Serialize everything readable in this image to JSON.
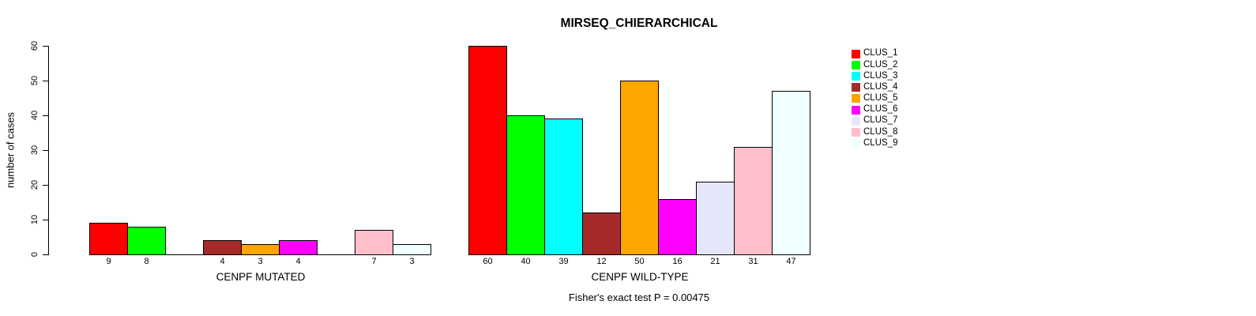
{
  "chart_data": {
    "type": "bar",
    "title": "MIRSEQ_CHIERARCHICAL",
    "ylabel": "number of cases",
    "ylim": [
      0,
      60
    ],
    "yticks": [
      0,
      10,
      20,
      30,
      40,
      50,
      60
    ],
    "caption": "Fisher's exact test P = 0.00475",
    "legend_position": "top-right-outside",
    "grid": false,
    "bar_outline_color": "#000000",
    "clusters": [
      {
        "name": "CLUS_1",
        "color": "#FF0000"
      },
      {
        "name": "CLUS_2",
        "color": "#00FF00"
      },
      {
        "name": "CLUS_3",
        "color": "#00FFFF"
      },
      {
        "name": "CLUS_4",
        "color": "#A52A2A"
      },
      {
        "name": "CLUS_5",
        "color": "#FFA500"
      },
      {
        "name": "CLUS_6",
        "color": "#FF00FF"
      },
      {
        "name": "CLUS_7",
        "color": "#E6E6FA"
      },
      {
        "name": "CLUS_8",
        "color": "#FFC0CB"
      },
      {
        "name": "CLUS_9",
        "color": "#F0FFFF"
      }
    ],
    "groups": [
      {
        "label": "CENPF MUTATED",
        "values": [
          9,
          8,
          0,
          4,
          3,
          4,
          0,
          7,
          3
        ]
      },
      {
        "label": "CENPF WILD-TYPE",
        "values": [
          60,
          40,
          39,
          12,
          50,
          16,
          21,
          31,
          47
        ]
      }
    ]
  }
}
